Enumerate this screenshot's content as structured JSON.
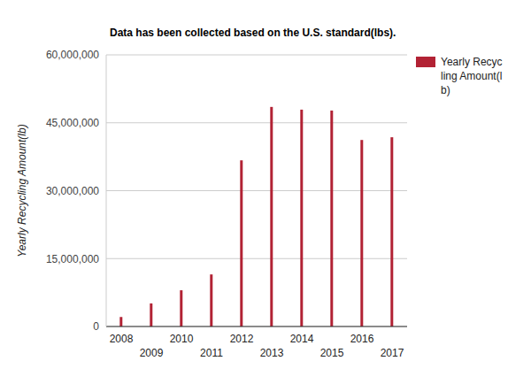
{
  "chart_data": {
    "type": "bar",
    "title": "Data has been collected based on the U.S. standard(lbs).",
    "y_label": "Yearly Recycling Amount(lb)",
    "categories": [
      "2008",
      "2009",
      "2010",
      "2011",
      "2012",
      "2013",
      "2014",
      "2015",
      "2016",
      "2017"
    ],
    "series": [
      {
        "name": "Yearly Recycling Amount(lb)",
        "color": "#b22234",
        "values": [
          2100000,
          5100000,
          8000000,
          11500000,
          36700000,
          48500000,
          47900000,
          47700000,
          41200000,
          41800000
        ]
      }
    ],
    "ylim": [
      0,
      60000000
    ],
    "yticks": [
      {
        "value": 0,
        "label": "0"
      },
      {
        "value": 15000000,
        "label": "15,000,000"
      },
      {
        "value": 30000000,
        "label": "30,000,000"
      },
      {
        "value": 45000000,
        "label": "45,000,000"
      },
      {
        "value": 60000000,
        "label": "60,000,000"
      }
    ],
    "grid": true,
    "legend": "right"
  }
}
